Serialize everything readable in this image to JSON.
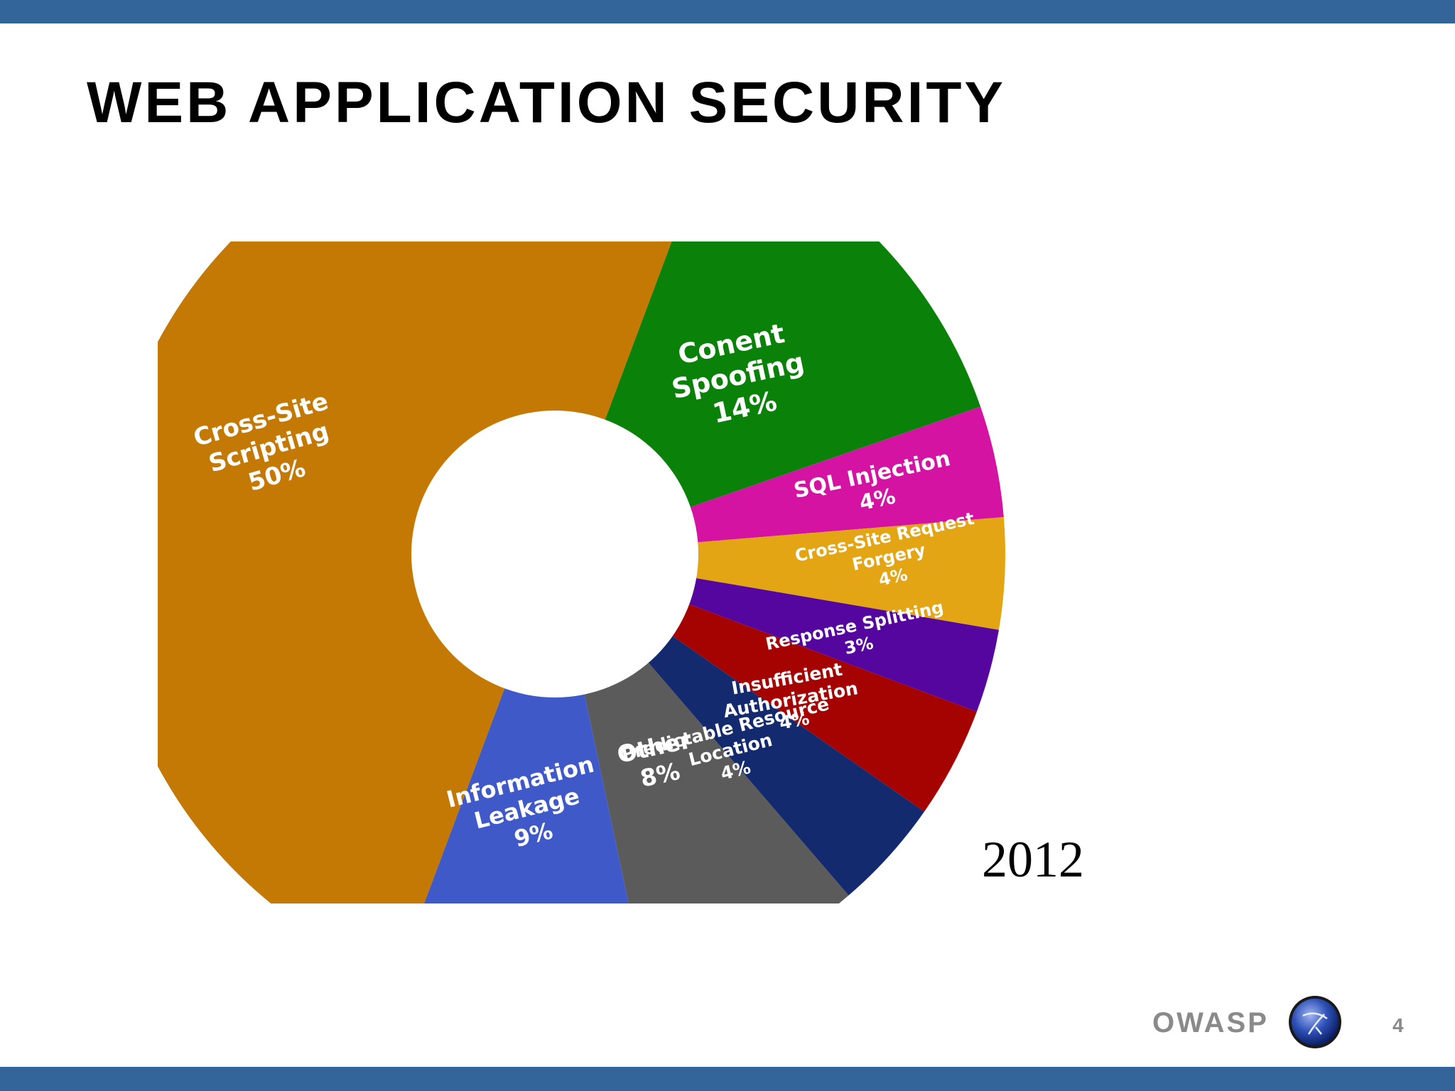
{
  "slide": {
    "title": "WEB APPLICATION SECURITY",
    "brand": "OWASP",
    "page_number": "4",
    "bar_color": "#33659a"
  },
  "chart_data": {
    "type": "pie",
    "variant": "donut",
    "annotation": "2012",
    "slices": [
      {
        "name": "Cross-Site Scripting",
        "label_lines": [
          "Cross-Site",
          "Scripting",
          "50%"
        ],
        "value": 50,
        "color": "#c47904"
      },
      {
        "name": "Conent Spoofing",
        "label_lines": [
          "Conent",
          "Spoofing",
          "14%"
        ],
        "value": 14,
        "color": "#0a820a"
      },
      {
        "name": "SQL Injection",
        "label_lines": [
          "SQL Injection",
          "4%"
        ],
        "value": 4,
        "color": "#d413a2"
      },
      {
        "name": "Cross-Site Request Forgery",
        "label_lines": [
          "Cross-Site Request",
          "Forgery",
          "4%"
        ],
        "value": 4,
        "color": "#e3a514"
      },
      {
        "name": "Response Splitting",
        "label_lines": [
          "Response Splitting",
          "3%"
        ],
        "value": 3,
        "color": "#54069e"
      },
      {
        "name": "Insufficient Authorization",
        "label_lines": [
          "Insufficient",
          "Authorization",
          "4%"
        ],
        "value": 4,
        "color": "#a50202"
      },
      {
        "name": "Predictable Resource Location",
        "label_lines": [
          "Predictable Resource",
          "Location",
          "4%"
        ],
        "value": 4,
        "color": "#142a6e"
      },
      {
        "name": "Other",
        "label_lines": [
          "Other",
          "8%"
        ],
        "value": 8,
        "color": "#5b5b5b"
      },
      {
        "name": "Information Leakage",
        "label_lines": [
          "Information",
          "Leakage",
          "9%"
        ],
        "value": 9,
        "color": "#3f59c8"
      }
    ]
  }
}
